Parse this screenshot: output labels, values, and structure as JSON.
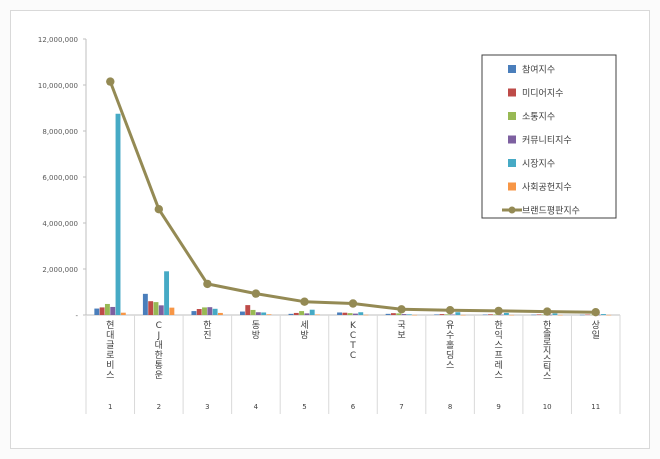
{
  "chart_data": {
    "type": "bar",
    "title": "",
    "xlabel": "",
    "ylabel": "",
    "ylim": [
      0,
      12000000
    ],
    "yticks": [
      0,
      2000000,
      4000000,
      6000000,
      8000000,
      10000000,
      12000000
    ],
    "ytick_labels": [
      "-",
      "2,000,000",
      "4,000,000",
      "6,000,000",
      "8,000,000",
      "10,000,000",
      "12,000,000"
    ],
    "grid": false,
    "legend_position": "top-right",
    "categories": [
      "현대글로비스",
      "CJ대한통운",
      "한진",
      "동방",
      "세방",
      "KCTC",
      "국보",
      "유수홀딩스",
      "한익스프레스",
      "한솔로지스틱스",
      "상일"
    ],
    "category_numbers": [
      "1",
      "2",
      "3",
      "4",
      "5",
      "6",
      "7",
      "8",
      "9",
      "10",
      "11"
    ],
    "series": [
      {
        "name": "참여지수",
        "kind": "bar",
        "color": "#4a7ebb",
        "values": [
          280000,
          920000,
          170000,
          150000,
          50000,
          110000,
          50000,
          25000,
          20000,
          15000,
          10000
        ]
      },
      {
        "name": "미디어지수",
        "kind": "bar",
        "color": "#be4b48",
        "values": [
          330000,
          600000,
          260000,
          430000,
          90000,
          100000,
          80000,
          40000,
          30000,
          25000,
          20000
        ]
      },
      {
        "name": "소통지수",
        "kind": "bar",
        "color": "#98b954",
        "values": [
          480000,
          560000,
          330000,
          220000,
          170000,
          80000,
          70000,
          30000,
          25000,
          20000,
          15000
        ]
      },
      {
        "name": "커뮤니티지수",
        "kind": "bar",
        "color": "#7d60a0",
        "values": [
          350000,
          420000,
          340000,
          120000,
          70000,
          60000,
          40000,
          20000,
          15000,
          10000,
          10000
        ]
      },
      {
        "name": "시장지수",
        "kind": "bar",
        "color": "#46aac5",
        "values": [
          8750000,
          1900000,
          270000,
          110000,
          230000,
          120000,
          30000,
          120000,
          90000,
          70000,
          40000
        ]
      },
      {
        "name": "사회공헌지수",
        "kind": "bar",
        "color": "#f79646",
        "values": [
          100000,
          320000,
          90000,
          30000,
          20000,
          10000,
          5000,
          5000,
          5000,
          5000,
          5000
        ]
      },
      {
        "name": "브랜드평판지수",
        "kind": "line",
        "color": "#948a54",
        "values": [
          10150000,
          4600000,
          1350000,
          930000,
          580000,
          500000,
          250000,
          210000,
          180000,
          150000,
          120000
        ]
      }
    ]
  }
}
